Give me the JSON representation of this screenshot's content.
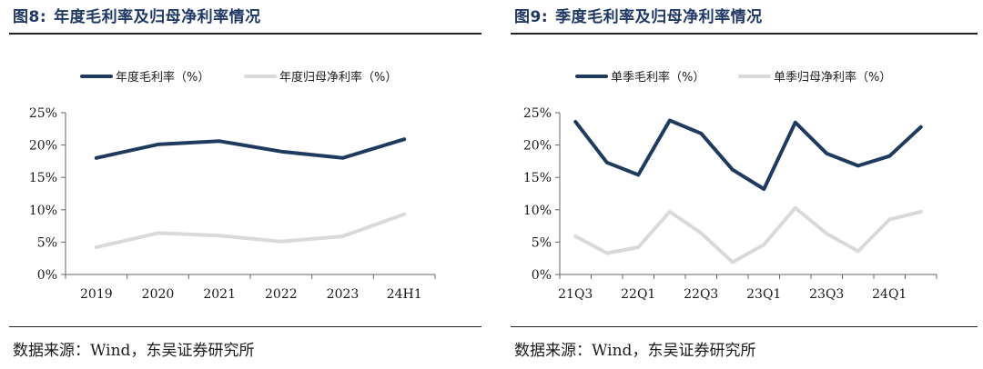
{
  "left": {
    "fig_num": "图8:",
    "fig_title": "年度毛利率及归母净利率情况",
    "source": "数据来源：Wind，东吴证券研究所"
  },
  "right": {
    "fig_num": "图9:",
    "fig_title": "季度毛利率及归母净利率情况",
    "source": "数据来源：Wind，东吴证券研究所"
  },
  "chart_data": [
    {
      "type": "line",
      "categories": [
        "2019",
        "2020",
        "2021",
        "2022",
        "2023",
        "24H1"
      ],
      "series": [
        {
          "name": "年度毛利率（%）",
          "color": "#1f3a5f",
          "values": [
            18.0,
            20.1,
            20.6,
            19.0,
            18.0,
            20.9
          ]
        },
        {
          "name": "年度归母净利率（%）",
          "color": "#d9d9d9",
          "values": [
            4.2,
            6.4,
            6.0,
            5.1,
            5.9,
            9.3
          ]
        }
      ],
      "y_ticks": [
        "0%",
        "5%",
        "10%",
        "15%",
        "20%",
        "25%"
      ],
      "ylim": [
        0,
        25
      ],
      "grid": false,
      "legend": "top"
    },
    {
      "type": "line",
      "categories": [
        "21Q3",
        "",
        "22Q1",
        "",
        "22Q3",
        "",
        "23Q1",
        "",
        "23Q3",
        "",
        "24Q1",
        ""
      ],
      "series": [
        {
          "name": "单季毛利率（%）",
          "color": "#1f3a5f",
          "values": [
            23.6,
            17.3,
            15.4,
            23.8,
            21.8,
            16.2,
            13.2,
            23.5,
            18.7,
            16.8,
            18.3,
            22.8
          ]
        },
        {
          "name": "单季归母净利率（%）",
          "color": "#d9d9d9",
          "values": [
            5.9,
            3.3,
            4.2,
            9.7,
            6.4,
            1.9,
            4.6,
            10.3,
            6.3,
            3.6,
            8.5,
            9.7
          ]
        }
      ],
      "y_ticks": [
        "0%",
        "5%",
        "10%",
        "15%",
        "20%",
        "25%"
      ],
      "ylim": [
        0,
        25
      ],
      "grid": false,
      "legend": "top"
    }
  ]
}
